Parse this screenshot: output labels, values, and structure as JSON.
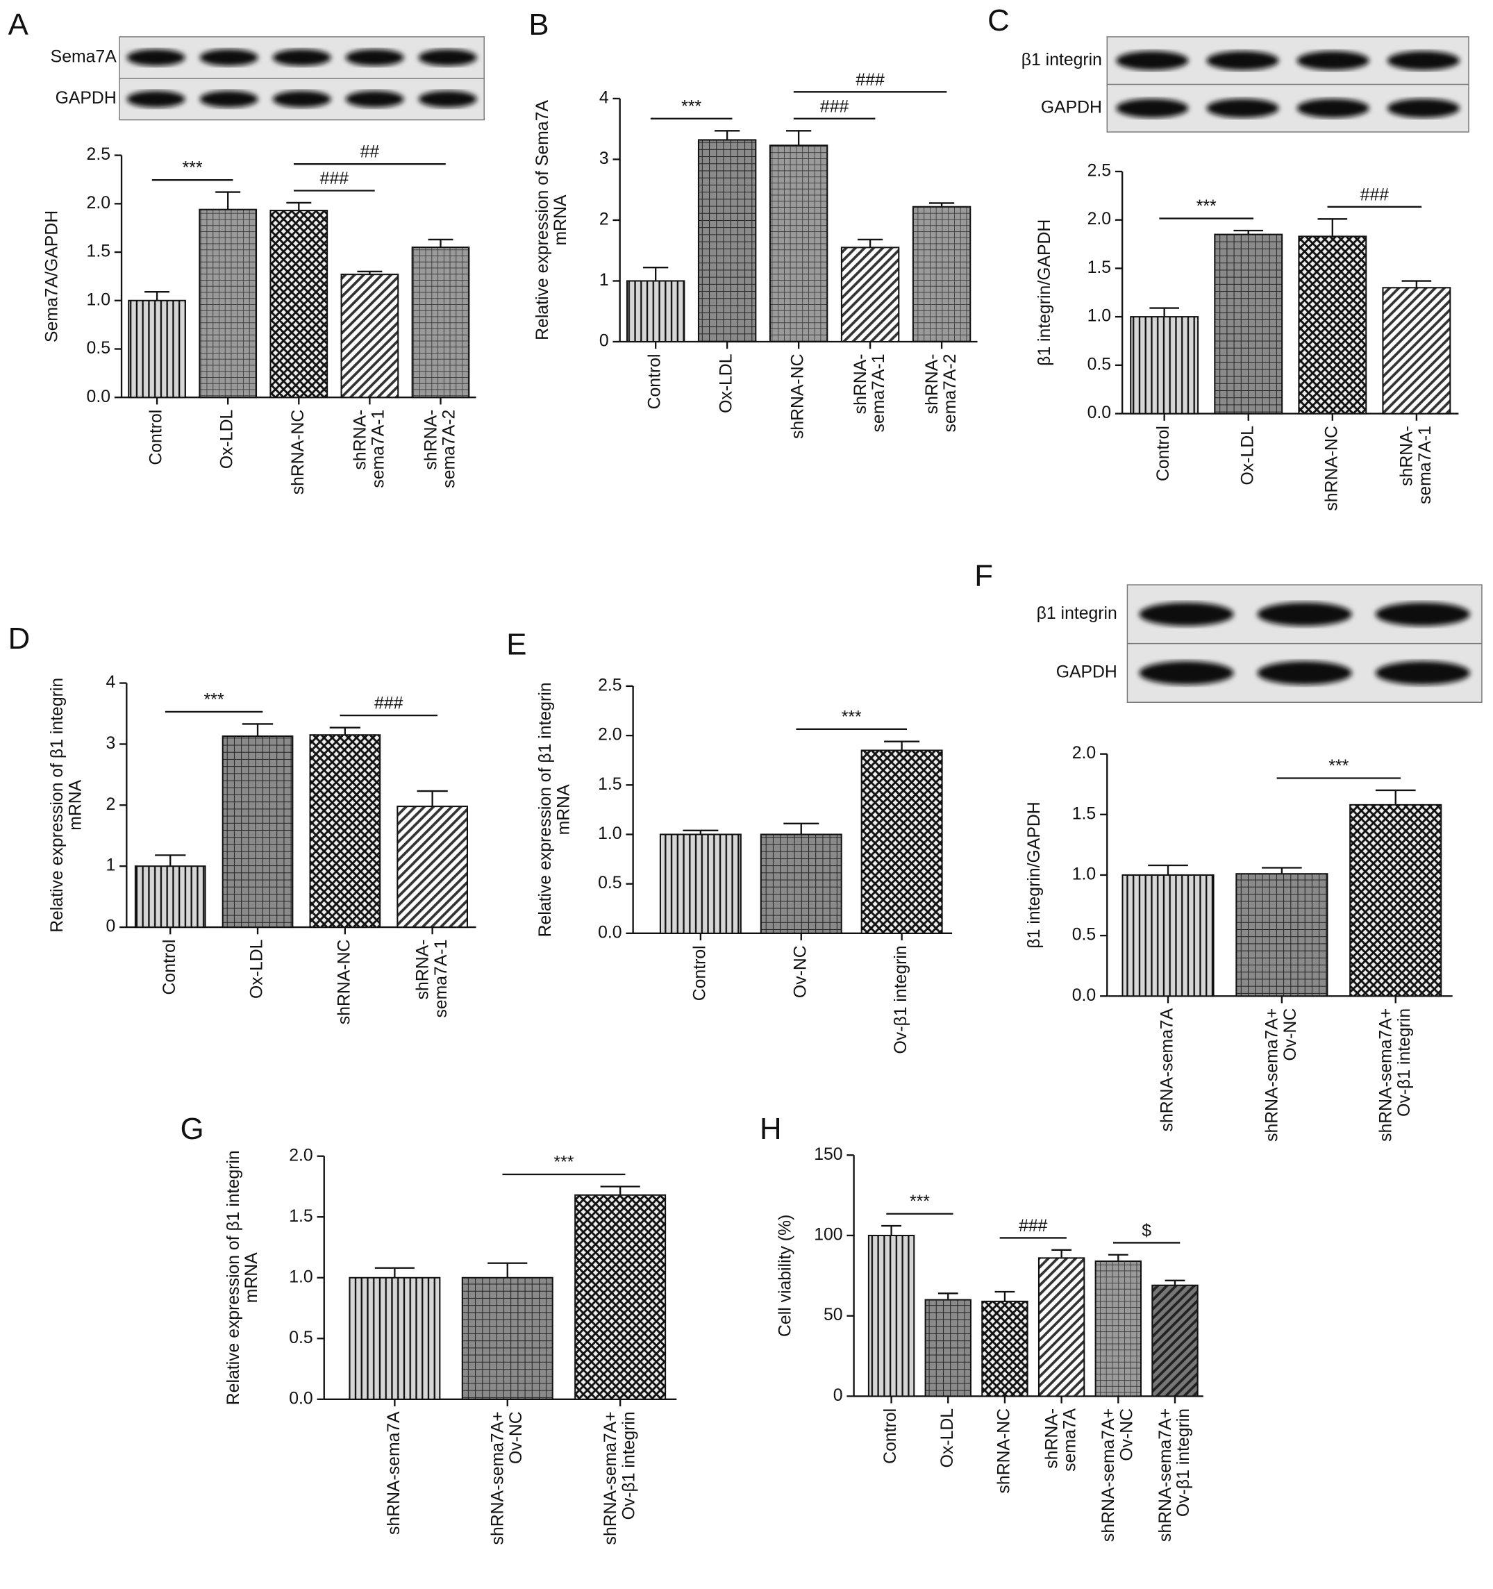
{
  "chart_data": [
    {
      "type": "bar",
      "panel": "A",
      "ylabel": "Sema7A/GAPDH",
      "blot_labels": [
        "Sema7A",
        "GAPDH"
      ],
      "categories": [
        "Control",
        "Ox-LDL",
        "shRNA-NC",
        "shRNA-\nsema7A-1",
        "shRNA-\nsema7A-2"
      ],
      "values": [
        1.0,
        1.94,
        1.93,
        1.27,
        1.55
      ],
      "errors": [
        0.09,
        0.18,
        0.08,
        0.03,
        0.08
      ],
      "patterns": [
        "vstripe",
        "finegrid",
        "cross",
        "diag",
        "finegrid"
      ],
      "ylim": [
        0,
        2.5
      ],
      "yticks": [
        {
          "value": 0,
          "label": "0.0"
        },
        {
          "value": 0.5,
          "label": "0.5"
        },
        {
          "value": 1,
          "label": "1.0"
        },
        {
          "value": 1.5,
          "label": "1.5"
        },
        {
          "value": 2,
          "label": "2.0"
        },
        {
          "value": 2.5,
          "label": "2.5"
        }
      ],
      "annotations": [
        {
          "text": "***",
          "from": 0,
          "to": 1
        },
        {
          "text": "###",
          "from": 2,
          "to": 3
        },
        {
          "text": "##",
          "from": 2,
          "to": 4
        }
      ]
    },
    {
      "type": "bar",
      "panel": "B",
      "ylabel": "Relative expression of Sema7A\nmRNA",
      "categories": [
        "Control",
        "Ox-LDL",
        "shRNA-NC",
        "shRNA-\nsema7A-1",
        "shRNA-\nsema7A-2"
      ],
      "values": [
        1.0,
        3.32,
        3.23,
        1.55,
        2.22
      ],
      "errors": [
        0.22,
        0.15,
        0.24,
        0.13,
        0.06
      ],
      "patterns": [
        "vstripe",
        "grid",
        "finegrid",
        "diag",
        "finegrid"
      ],
      "ylim": [
        0,
        4
      ],
      "yticks": [
        0,
        1,
        2,
        3,
        4
      ],
      "annotations": [
        {
          "text": "***",
          "from": 0,
          "to": 1
        },
        {
          "text": "###",
          "from": 2,
          "to": 3
        },
        {
          "text": "###",
          "from": 2,
          "to": 4
        }
      ]
    },
    {
      "type": "bar",
      "panel": "C",
      "ylabel": "β1 integrin/GAPDH",
      "blot_labels": [
        "β1 integrin",
        "GAPDH"
      ],
      "categories": [
        "Control",
        "Ox-LDL",
        "shRNA-NC",
        "shRNA-\nsema7A-1"
      ],
      "values": [
        1.0,
        1.85,
        1.83,
        1.3
      ],
      "errors": [
        0.09,
        0.04,
        0.18,
        0.07
      ],
      "patterns": [
        "vstripe",
        "grid",
        "cross",
        "diag"
      ],
      "ylim": [
        0,
        2.5
      ],
      "yticks": [
        {
          "value": 0,
          "label": "0.0"
        },
        {
          "value": 0.5,
          "label": "0.5"
        },
        {
          "value": 1,
          "label": "1.0"
        },
        {
          "value": 1.5,
          "label": "1.5"
        },
        {
          "value": 2,
          "label": "2.0"
        },
        {
          "value": 2.5,
          "label": "2.5"
        }
      ],
      "annotations": [
        {
          "text": "***",
          "from": 0,
          "to": 1
        },
        {
          "text": "###",
          "from": 2,
          "to": 3
        }
      ]
    },
    {
      "type": "bar",
      "panel": "D",
      "ylabel": "Relative expression of β1 integrin\nmRNA",
      "categories": [
        "Control",
        "Ox-LDL",
        "shRNA-NC",
        "shRNA-\nsema7A-1"
      ],
      "values": [
        1.0,
        3.13,
        3.15,
        1.98
      ],
      "errors": [
        0.18,
        0.2,
        0.12,
        0.25
      ],
      "patterns": [
        "vstripe",
        "grid",
        "cross",
        "diag"
      ],
      "ylim": [
        0,
        4
      ],
      "yticks": [
        0,
        1,
        2,
        3,
        4
      ],
      "annotations": [
        {
          "text": "***",
          "from": 0,
          "to": 1
        },
        {
          "text": "###",
          "from": 2,
          "to": 3
        }
      ]
    },
    {
      "type": "bar",
      "panel": "E",
      "ylabel": "Relative expression of β1 integrin\nmRNA",
      "categories": [
        "Control",
        "Ov-NC",
        "Ov-β1 integrin"
      ],
      "values": [
        1.0,
        1.0,
        1.85
      ],
      "errors": [
        0.04,
        0.11,
        0.09
      ],
      "patterns": [
        "vstripe",
        "grid",
        "cross"
      ],
      "ylim": [
        0,
        2.5
      ],
      "yticks": [
        {
          "value": 0,
          "label": "0.0"
        },
        {
          "value": 0.5,
          "label": "0.5"
        },
        {
          "value": 1,
          "label": "1.0"
        },
        {
          "value": 1.5,
          "label": "1.5"
        },
        {
          "value": 2,
          "label": "2.0"
        },
        {
          "value": 2.5,
          "label": "2.5"
        }
      ],
      "annotations": [
        {
          "text": "***",
          "from": 1,
          "to": 2
        }
      ]
    },
    {
      "type": "bar",
      "panel": "F",
      "ylabel": "β1 integrin/GAPDH",
      "blot_labels": [
        "β1 integrin",
        "GAPDH"
      ],
      "categories": [
        "shRNA-sema7A",
        "shRNA-sema7A+\nOv-NC",
        "shRNA-sema7A+\nOv-β1 integrin"
      ],
      "values": [
        1.0,
        1.01,
        1.58
      ],
      "errors": [
        0.08,
        0.05,
        0.12
      ],
      "patterns": [
        "vstripe",
        "grid",
        "cross"
      ],
      "ylim": [
        0,
        2
      ],
      "yticks": [
        {
          "value": 0,
          "label": "0.0"
        },
        {
          "value": 0.5,
          "label": "0.5"
        },
        {
          "value": 1,
          "label": "1.0"
        },
        {
          "value": 1.5,
          "label": "1.5"
        },
        {
          "value": 2,
          "label": "2.0"
        }
      ],
      "annotations": [
        {
          "text": "***",
          "from": 1,
          "to": 2
        }
      ]
    },
    {
      "type": "bar",
      "panel": "G",
      "ylabel": "Relative expression of β1 integrin\nmRNA",
      "categories": [
        "shRNA-sema7A",
        "shRNA-sema7A+\nOv-NC",
        "shRNA-sema7A+\nOv-β1 integrin"
      ],
      "values": [
        1.0,
        1.0,
        1.68
      ],
      "errors": [
        0.08,
        0.12,
        0.07
      ],
      "patterns": [
        "vstripe",
        "grid",
        "cross"
      ],
      "ylim": [
        0,
        2
      ],
      "yticks": [
        {
          "value": 0,
          "label": "0.0"
        },
        {
          "value": 0.5,
          "label": "0.5"
        },
        {
          "value": 1,
          "label": "1.0"
        },
        {
          "value": 1.5,
          "label": "1.5"
        },
        {
          "value": 2,
          "label": "2.0"
        }
      ],
      "annotations": [
        {
          "text": "***",
          "from": 1,
          "to": 2
        }
      ]
    },
    {
      "type": "bar",
      "panel": "H",
      "ylabel": "Cell viability (%)",
      "categories": [
        "Control",
        "Ox-LDL",
        "shRNA-NC",
        "shRNA-\nsema7A",
        "shRNA-sema7A+\nOv-NC",
        "shRNA-sema7A+\nOv-β1 integrin"
      ],
      "values": [
        100,
        60,
        59,
        86,
        84,
        69
      ],
      "errors": [
        6,
        4,
        6,
        5,
        4,
        3
      ],
      "patterns": [
        "vstripe",
        "grid",
        "cross",
        "diag",
        "finegrid",
        "darkdiag"
      ],
      "ylim": [
        0,
        150
      ],
      "yticks": [
        0,
        50,
        100,
        150
      ],
      "annotations": [
        {
          "text": "***",
          "from": 0,
          "to": 1
        },
        {
          "text": "###",
          "from": 2,
          "to": 3
        },
        {
          "text": "$",
          "from": 4,
          "to": 5
        }
      ]
    }
  ]
}
